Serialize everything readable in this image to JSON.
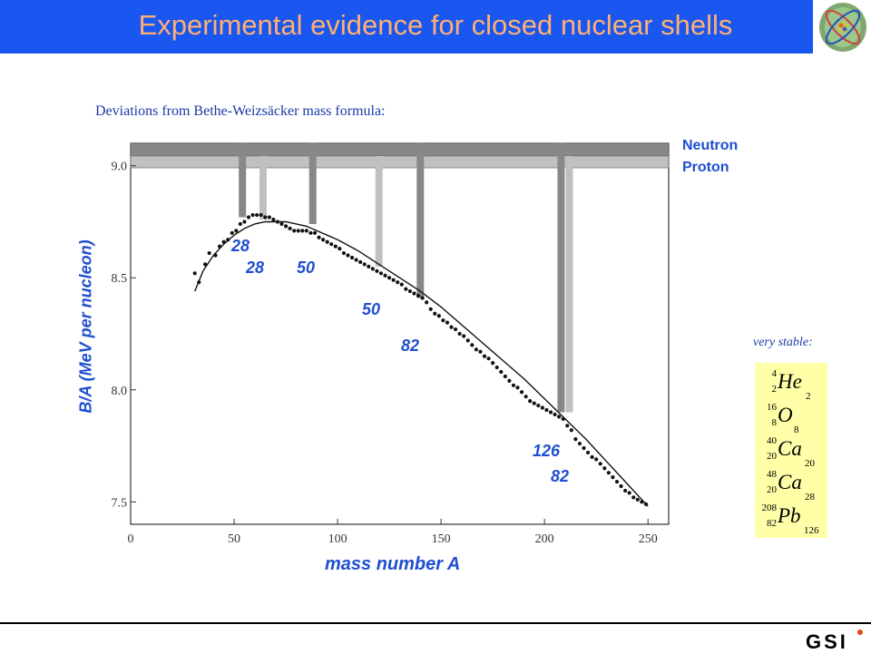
{
  "header": {
    "title": "Experimental evidence for closed nuclear shells",
    "bg_color": "#1a56f0",
    "title_color": "#ffb070",
    "logo_icon": "atom-logo-icon"
  },
  "subtitle": "Deviations from Bethe-Weizsäcker mass formula:",
  "chart_data": {
    "type": "scatter",
    "xlabel": "mass number A",
    "ylabel": "B/A (MeV per nucleon)",
    "xlim": [
      0,
      260
    ],
    "ylim": [
      7.4,
      9.1
    ],
    "x_ticks": [
      0,
      50,
      100,
      150,
      200,
      250
    ],
    "x_tick_labels": [
      "0",
      "50",
      "100",
      "150",
      "200",
      "250"
    ],
    "y_ticks": [
      7.5,
      8.0,
      8.5,
      9.0
    ],
    "y_tick_labels": [
      "7.5",
      "8.0",
      "8.5",
      "9.0"
    ],
    "legend": [
      "Neutron",
      "Proton"
    ],
    "legend_placement": "top-right",
    "neutron_color": "#888888",
    "proton_color": "#c0c0c0",
    "series": [
      {
        "kind": "points",
        "x": [
          31,
          33,
          36,
          38,
          41,
          43,
          45,
          47,
          49,
          51,
          53,
          55,
          57,
          59,
          61,
          63,
          65,
          67,
          69,
          71,
          73,
          75,
          77,
          79,
          81,
          83,
          85,
          87,
          89,
          91,
          93,
          95,
          97,
          99,
          101,
          103,
          105,
          107,
          109,
          111,
          113,
          115,
          117,
          119,
          121,
          123,
          125,
          127,
          129,
          131,
          133,
          135,
          137,
          139,
          141,
          143,
          145,
          147,
          149,
          151,
          153,
          155,
          157,
          159,
          161,
          163,
          165,
          167,
          169,
          171,
          173,
          175,
          177,
          179,
          181,
          183,
          185,
          187,
          189,
          191,
          193,
          195,
          197,
          199,
          201,
          203,
          205,
          207,
          209,
          211,
          213,
          215,
          217,
          219,
          221,
          223,
          225,
          227,
          229,
          231,
          233,
          235,
          237,
          239,
          241,
          243,
          245,
          247,
          249
        ],
        "y": [
          8.52,
          8.48,
          8.56,
          8.61,
          8.6,
          8.64,
          8.66,
          8.67,
          8.7,
          8.71,
          8.74,
          8.75,
          8.77,
          8.78,
          8.78,
          8.78,
          8.77,
          8.77,
          8.76,
          8.75,
          8.74,
          8.73,
          8.72,
          8.71,
          8.71,
          8.71,
          8.71,
          8.7,
          8.7,
          8.68,
          8.67,
          8.66,
          8.65,
          8.64,
          8.63,
          8.61,
          8.6,
          8.59,
          8.58,
          8.57,
          8.56,
          8.55,
          8.54,
          8.53,
          8.52,
          8.51,
          8.5,
          8.49,
          8.48,
          8.47,
          8.45,
          8.44,
          8.43,
          8.42,
          8.41,
          8.39,
          8.36,
          8.34,
          8.33,
          8.31,
          8.3,
          8.28,
          8.27,
          8.25,
          8.24,
          8.22,
          8.2,
          8.18,
          8.17,
          8.15,
          8.14,
          8.12,
          8.1,
          8.08,
          8.06,
          8.04,
          8.02,
          8.01,
          7.99,
          7.97,
          7.95,
          7.94,
          7.93,
          7.92,
          7.91,
          7.9,
          7.89,
          7.88,
          7.87,
          7.84,
          7.82,
          7.78,
          7.76,
          7.74,
          7.72,
          7.7,
          7.69,
          7.67,
          7.65,
          7.63,
          7.61,
          7.59,
          7.57,
          7.55,
          7.54,
          7.52,
          7.51,
          7.5,
          7.49
        ]
      },
      {
        "kind": "curve",
        "x": [
          31,
          35,
          40,
          45,
          50,
          55,
          60,
          65,
          70,
          75,
          80,
          85,
          90,
          95,
          100,
          110,
          120,
          130,
          140,
          150,
          160,
          170,
          180,
          190,
          200,
          210,
          220,
          230,
          240,
          250
        ],
        "y": [
          8.44,
          8.53,
          8.6,
          8.65,
          8.69,
          8.72,
          8.74,
          8.75,
          8.75,
          8.75,
          8.74,
          8.73,
          8.71,
          8.69,
          8.67,
          8.62,
          8.56,
          8.5,
          8.44,
          8.37,
          8.29,
          8.21,
          8.13,
          8.05,
          7.96,
          7.87,
          7.78,
          7.68,
          7.58,
          7.48
        ]
      }
    ],
    "shell_markers": [
      {
        "type": "neutron",
        "a": 54,
        "bottom": 8.77
      },
      {
        "type": "proton",
        "a": 64,
        "bottom": 8.76
      },
      {
        "type": "neutron",
        "a": 88,
        "bottom": 8.74
      },
      {
        "type": "proton",
        "a": 120,
        "bottom": 8.55
      },
      {
        "type": "neutron",
        "a": 140,
        "bottom": 8.41
      },
      {
        "type": "neutron",
        "a": 208,
        "bottom": 7.9
      },
      {
        "type": "proton",
        "a": 212,
        "bottom": 7.9
      }
    ],
    "magic_labels": [
      "28",
      "28",
      "50",
      "50",
      "82",
      "126",
      "82"
    ]
  },
  "stable": {
    "label": "very stable:",
    "box_color": "#ffffa8",
    "nuclides": [
      {
        "a": "4",
        "z": "2",
        "sym": "He",
        "n": "2"
      },
      {
        "a": "16",
        "z": "8",
        "sym": "O",
        "n": "8"
      },
      {
        "a": "40",
        "z": "20",
        "sym": "Ca",
        "n": "20"
      },
      {
        "a": "48",
        "z": "20",
        "sym": "Ca",
        "n": "28"
      },
      {
        "a": "208",
        "z": "82",
        "sym": "Pb",
        "n": "126"
      }
    ]
  },
  "footer": {
    "logo_text": "GSI"
  }
}
